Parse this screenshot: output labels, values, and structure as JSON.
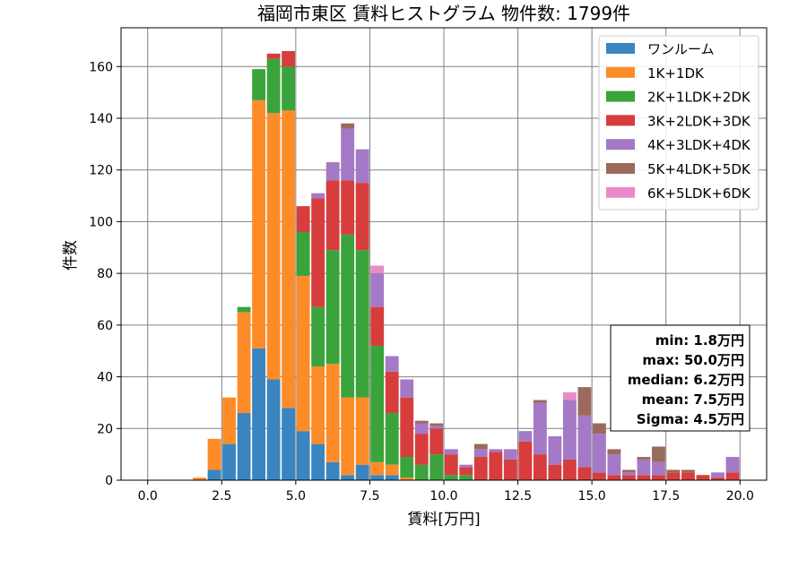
{
  "chart_data": {
    "type": "bar",
    "stacked": true,
    "title": "福岡市東区 賃料ヒストグラム 物件数: 1799件",
    "xlabel": "賃料[万円]",
    "ylabel": "件数",
    "xlim": [
      -0.9,
      20.9
    ],
    "ylim": [
      0,
      175
    ],
    "xticks": [
      0,
      2.5,
      5,
      7.5,
      10,
      12.5,
      15,
      17.5,
      20
    ],
    "xtick_labels": [
      "0.0",
      "2.5",
      "5.0",
      "7.5",
      "10.0",
      "12.5",
      "15.0",
      "17.5",
      "20.0"
    ],
    "yticks": [
      0,
      20,
      40,
      60,
      80,
      100,
      120,
      140,
      160
    ],
    "ytick_labels": [
      "0",
      "20",
      "40",
      "60",
      "80",
      "100",
      "120",
      "140",
      "160"
    ],
    "grid": true,
    "legend_position": "top-right",
    "bin_width": 0.5,
    "x": [
      1.5,
      2.0,
      2.5,
      3.0,
      3.5,
      4.0,
      4.5,
      5.0,
      5.5,
      6.0,
      6.5,
      7.0,
      7.5,
      8.0,
      8.5,
      9.0,
      9.5,
      10.0,
      10.5,
      11.0,
      11.5,
      12.0,
      12.5,
      13.0,
      13.5,
      14.0,
      14.5,
      15.0,
      15.5,
      16.0,
      16.5,
      17.0,
      17.5,
      18.0,
      18.5,
      19.0,
      19.5
    ],
    "series": [
      {
        "name": "ワンルーム",
        "color": "#3a85bf",
        "values": [
          0,
          4,
          14,
          26,
          51,
          39,
          28,
          19,
          14,
          7,
          2,
          6,
          2,
          2,
          0,
          0,
          0,
          0,
          0,
          0,
          0,
          0,
          0,
          0,
          0,
          0,
          0,
          0,
          0,
          0,
          0,
          0,
          0,
          0,
          0,
          0,
          0
        ]
      },
      {
        "name": "1K+1DK",
        "color": "#fd8c28",
        "values": [
          1,
          12,
          18,
          39,
          96,
          103,
          115,
          60,
          30,
          38,
          30,
          26,
          5,
          4,
          1,
          0,
          0,
          0,
          0,
          0,
          0,
          0,
          0,
          0,
          0,
          0,
          0,
          0,
          0,
          0,
          0,
          0,
          0,
          0,
          0,
          0,
          0
        ]
      },
      {
        "name": "2K+1LDK+2DK",
        "color": "#3ba33b",
        "values": [
          0,
          0,
          0,
          2,
          12,
          21,
          17,
          17,
          23,
          44,
          63,
          57,
          45,
          20,
          8,
          6,
          10,
          2,
          2,
          0,
          0,
          0,
          0,
          0,
          0,
          0,
          0,
          0,
          0,
          0,
          0,
          0,
          0,
          0,
          0,
          0,
          0
        ]
      },
      {
        "name": "3K+2LDK+3DK",
        "color": "#d73d3d",
        "values": [
          0,
          0,
          0,
          0,
          0,
          2,
          6,
          10,
          42,
          27,
          21,
          26,
          15,
          16,
          23,
          12,
          10,
          8,
          3,
          9,
          11,
          8,
          15,
          10,
          6,
          8,
          5,
          3,
          2,
          2,
          2,
          2,
          3,
          3,
          2,
          1,
          3
        ]
      },
      {
        "name": "4K+3LDK+4DK",
        "color": "#a479c5",
        "values": [
          0,
          0,
          0,
          0,
          0,
          0,
          0,
          0,
          2,
          7,
          20,
          13,
          13,
          6,
          7,
          4,
          1,
          2,
          1,
          3,
          1,
          4,
          4,
          20,
          11,
          23,
          20,
          15,
          8,
          1,
          6,
          5,
          0,
          0,
          0,
          2,
          6
        ]
      },
      {
        "name": "5K+4LDK+5DK",
        "color": "#9b6a5c",
        "values": [
          0,
          0,
          0,
          0,
          0,
          0,
          0,
          0,
          0,
          0,
          2,
          0,
          0,
          0,
          0,
          1,
          1,
          0,
          0,
          2,
          0,
          0,
          0,
          1,
          0,
          0,
          11,
          4,
          2,
          1,
          1,
          6,
          1,
          1,
          0,
          0,
          0
        ]
      },
      {
        "name": "6K+5LDK+6DK",
        "color": "#ea8ac8",
        "values": [
          0,
          0,
          0,
          0,
          0,
          0,
          0,
          0,
          0,
          0,
          0,
          0,
          3,
          0,
          0,
          0,
          0,
          0,
          0,
          0,
          0,
          0,
          0,
          0,
          0,
          3,
          0,
          0,
          0,
          0,
          0,
          0,
          0,
          0,
          0,
          0,
          0
        ]
      }
    ],
    "stats": [
      "min: 1.8万円",
      "max: 50.0万円",
      "median: 6.2万円",
      "mean: 7.5万円",
      "Sigma: 4.5万円"
    ]
  }
}
